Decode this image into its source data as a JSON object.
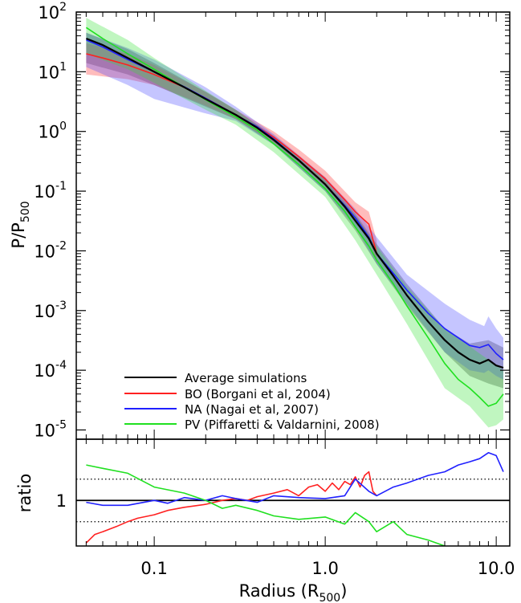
{
  "chart_data": [
    {
      "type": "line",
      "panel": "main",
      "xlabel_prefix": "Radius (R",
      "xlabel_sub": "500",
      "xlabel_suffix": ")",
      "ylabel_prefix": "P/P",
      "ylabel_sub": "500",
      "xscale": "log",
      "yscale": "log",
      "xlim": [
        0.035,
        12
      ],
      "ylim": [
        7e-06,
        100
      ],
      "ytick_exponents": [
        "2",
        "1",
        "0",
        "-1",
        "-2",
        "-3",
        "-4",
        "-5"
      ],
      "ytick_base": "10",
      "ytick_values": [
        100,
        10,
        1,
        0.1,
        0.01,
        0.001,
        0.0001,
        1e-05
      ],
      "legend_position": "bottom-left",
      "series": [
        {
          "name": "Average simulations",
          "color": "#000000",
          "x": [
            0.04,
            0.05,
            0.07,
            0.1,
            0.15,
            0.2,
            0.3,
            0.4,
            0.5,
            0.7,
            1.0,
            1.3,
            1.5,
            1.8,
            2.0,
            2.5,
            3.0,
            4.0,
            5.0,
            6.0,
            7.0,
            8.0,
            9.0,
            10.0,
            11.0
          ],
          "y": [
            36,
            28,
            17,
            10,
            5.5,
            3.5,
            1.9,
            1.15,
            0.72,
            0.33,
            0.13,
            0.055,
            0.032,
            0.016,
            0.009,
            0.0038,
            0.0018,
            0.00065,
            0.00032,
            0.0002,
            0.00015,
            0.00013,
            0.00015,
            0.00012,
            0.00011
          ]
        },
        {
          "name": "BO (Borgani et al, 2004)",
          "color": "#ff2020",
          "x": [
            0.04,
            0.05,
            0.07,
            0.1,
            0.15,
            0.2,
            0.3,
            0.4,
            0.5,
            0.7,
            1.0,
            1.3,
            1.5,
            1.8,
            2.0
          ],
          "y": [
            20,
            17,
            13,
            9,
            5.5,
            3.6,
            1.9,
            1.2,
            0.8,
            0.38,
            0.16,
            0.072,
            0.045,
            0.028,
            0.009
          ]
        },
        {
          "name": "NA (Nagai et al, 2007)",
          "color": "#2020ff",
          "x": [
            0.04,
            0.05,
            0.07,
            0.1,
            0.15,
            0.2,
            0.3,
            0.4,
            0.5,
            0.7,
            1.0,
            1.3,
            1.5,
            1.8,
            2.0,
            2.5,
            3.0,
            4.0,
            5.0,
            6.0,
            7.0,
            8.0,
            9.0,
            10.0,
            11.0
          ],
          "y": [
            34,
            26,
            16,
            10,
            5.6,
            3.6,
            1.9,
            1.2,
            0.75,
            0.33,
            0.13,
            0.058,
            0.036,
            0.017,
            0.009,
            0.0042,
            0.0022,
            0.0009,
            0.0005,
            0.00035,
            0.00026,
            0.00024,
            0.00027,
            0.00019,
            0.00015
          ]
        },
        {
          "name": "PV (Piffaretti & Valdarnini, 2008)",
          "color": "#20e020",
          "x": [
            0.04,
            0.05,
            0.07,
            0.1,
            0.15,
            0.2,
            0.3,
            0.4,
            0.5,
            0.7,
            1.0,
            1.3,
            1.5,
            1.8,
            2.0,
            2.5,
            3.0,
            4.0,
            5.0,
            6.0,
            7.0,
            8.0,
            9.0,
            10.0,
            11.0
          ],
          "y": [
            55,
            36,
            20,
            11,
            5.5,
            3.4,
            1.75,
            1.05,
            0.62,
            0.28,
            0.11,
            0.046,
            0.025,
            0.012,
            0.007,
            0.0028,
            0.0012,
            0.00035,
            0.00013,
            7e-05,
            5e-05,
            3.5e-05,
            2.5e-05,
            2.8e-05,
            4e-05
          ]
        }
      ],
      "bands": [
        {
          "series": "Average simulations",
          "color": "#404040",
          "opacity": 0.35,
          "x": [
            0.04,
            0.07,
            0.1,
            0.2,
            0.3,
            0.5,
            1.0,
            1.5,
            2.0,
            3.0,
            5.0,
            7.0,
            9.0,
            11.0
          ],
          "low": [
            14,
            9,
            6,
            2.6,
            1.6,
            0.6,
            0.1,
            0.022,
            0.006,
            0.0012,
            0.0002,
            8e-05,
            6e-05,
            5e-05
          ],
          "high": [
            45,
            24,
            14,
            4.6,
            2.3,
            0.85,
            0.17,
            0.042,
            0.013,
            0.0028,
            0.0005,
            0.00028,
            0.00032,
            0.00024
          ]
        },
        {
          "series": "BO (Borgani et al, 2004)",
          "color": "#ff4040",
          "opacity": 0.35,
          "x": [
            0.04,
            0.07,
            0.1,
            0.2,
            0.3,
            0.5,
            0.7,
            1.0,
            1.3,
            1.5,
            1.8,
            2.0
          ],
          "low": [
            9,
            7.5,
            6,
            2.7,
            1.6,
            0.65,
            0.3,
            0.12,
            0.05,
            0.03,
            0.018,
            0.006
          ],
          "high": [
            30,
            20,
            13,
            4.6,
            2.3,
            1.0,
            0.5,
            0.22,
            0.1,
            0.065,
            0.045,
            0.015
          ]
        },
        {
          "series": "NA (Nagai et al, 2007)",
          "color": "#4040ff",
          "opacity": 0.3,
          "x": [
            0.04,
            0.07,
            0.1,
            0.2,
            0.3,
            0.5,
            1.0,
            1.5,
            2.0,
            3.0,
            5.0,
            7.0,
            8.5,
            9.0,
            10.0,
            11.0
          ],
          "low": [
            12,
            6,
            3.5,
            2.0,
            1.5,
            0.6,
            0.1,
            0.025,
            0.006,
            0.0013,
            0.0002,
            0.0001,
            9e-05,
            0.0001,
            8e-05,
            7e-05
          ],
          "high": [
            45,
            25,
            16,
            5.5,
            2.6,
            0.9,
            0.17,
            0.05,
            0.017,
            0.004,
            0.0013,
            0.0007,
            0.00055,
            0.0008,
            0.0005,
            0.00035
          ]
        },
        {
          "series": "PV (Piffaretti & Valdarnini, 2008)",
          "color": "#30e030",
          "opacity": 0.3,
          "x": [
            0.04,
            0.07,
            0.1,
            0.2,
            0.3,
            0.5,
            1.0,
            1.5,
            2.0,
            3.0,
            5.0,
            7.0,
            9.0,
            10.0,
            11.0
          ],
          "low": [
            20,
            11,
            6.5,
            2.3,
            1.3,
            0.45,
            0.08,
            0.015,
            0.004,
            0.0006,
            5e-05,
            2.5e-05,
            1.1e-05,
            1.2e-05,
            1.5e-05
          ],
          "high": [
            80,
            34,
            17,
            4.8,
            2.3,
            0.8,
            0.15,
            0.04,
            0.012,
            0.0025,
            0.0005,
            0.00025,
            0.00015,
            0.00012,
            0.0001
          ]
        }
      ]
    },
    {
      "type": "line",
      "panel": "ratio",
      "ylabel": "ratio",
      "xscale": "log",
      "yscale": "log",
      "xlim": [
        0.035,
        12
      ],
      "ylim": [
        0.62,
        1.9
      ],
      "ytick_labels": [
        "1"
      ],
      "ytick_values": [
        1
      ],
      "xtick_labels": [
        "0.1",
        "1.0",
        "10.0"
      ],
      "xtick_values": [
        0.1,
        1,
        10
      ],
      "reference_lines": [
        {
          "value": 1.0,
          "style": "solid"
        },
        {
          "value": 1.25,
          "style": "dotted"
        },
        {
          "value": 0.8,
          "style": "dotted"
        }
      ],
      "series": [
        {
          "name": "BO (Borgani et al, 2004)",
          "color": "#ff2020",
          "x": [
            0.04,
            0.045,
            0.05,
            0.06,
            0.07,
            0.08,
            0.1,
            0.12,
            0.15,
            0.2,
            0.25,
            0.3,
            0.35,
            0.4,
            0.5,
            0.6,
            0.7,
            0.8,
            0.9,
            1.0,
            1.1,
            1.2,
            1.3,
            1.4,
            1.5,
            1.6,
            1.7,
            1.8,
            1.9,
            2.0
          ],
          "y": [
            0.64,
            0.7,
            0.72,
            0.76,
            0.8,
            0.83,
            0.86,
            0.9,
            0.93,
            0.96,
            1.0,
            1.02,
            1.0,
            1.04,
            1.08,
            1.12,
            1.05,
            1.15,
            1.18,
            1.1,
            1.2,
            1.12,
            1.22,
            1.18,
            1.28,
            1.15,
            1.3,
            1.35,
            1.1,
            1.05
          ]
        },
        {
          "name": "NA (Nagai et al, 2007)",
          "color": "#2020ff",
          "x": [
            0.04,
            0.05,
            0.07,
            0.1,
            0.12,
            0.15,
            0.2,
            0.25,
            0.3,
            0.4,
            0.5,
            0.7,
            1.0,
            1.3,
            1.5,
            1.8,
            2.0,
            2.5,
            3.0,
            4.0,
            5.0,
            6.0,
            7.0,
            8.0,
            9.0,
            10.0,
            11.0
          ],
          "y": [
            0.98,
            0.95,
            0.95,
            1.0,
            0.97,
            1.03,
            1.0,
            1.05,
            1.02,
            0.98,
            1.05,
            1.03,
            1.02,
            1.05,
            1.25,
            1.1,
            1.05,
            1.15,
            1.2,
            1.3,
            1.35,
            1.45,
            1.5,
            1.55,
            1.65,
            1.6,
            1.35
          ]
        },
        {
          "name": "PV (Piffaretti & Valdarnini, 2008)",
          "color": "#20e020",
          "x": [
            0.04,
            0.05,
            0.07,
            0.1,
            0.15,
            0.2,
            0.25,
            0.3,
            0.4,
            0.5,
            0.7,
            1.0,
            1.3,
            1.5,
            1.8,
            2.0,
            2.5,
            3.0,
            4.0,
            5.0,
            5.5
          ],
          "y": [
            1.45,
            1.4,
            1.33,
            1.15,
            1.08,
            1.0,
            0.92,
            0.95,
            0.9,
            0.85,
            0.82,
            0.84,
            0.78,
            0.88,
            0.8,
            0.72,
            0.8,
            0.7,
            0.66,
            0.62,
            0.6
          ]
        }
      ]
    }
  ],
  "legend": {
    "entries": [
      {
        "label": "Average simulations",
        "color": "#000000"
      },
      {
        "label": "BO (Borgani et al, 2004)",
        "color": "#ff2020"
      },
      {
        "label": "NA (Nagai et al, 2007)",
        "color": "#2020ff"
      },
      {
        "label": "PV (Piffaretti & Valdarnini, 2008)",
        "color": "#20e020"
      }
    ]
  }
}
